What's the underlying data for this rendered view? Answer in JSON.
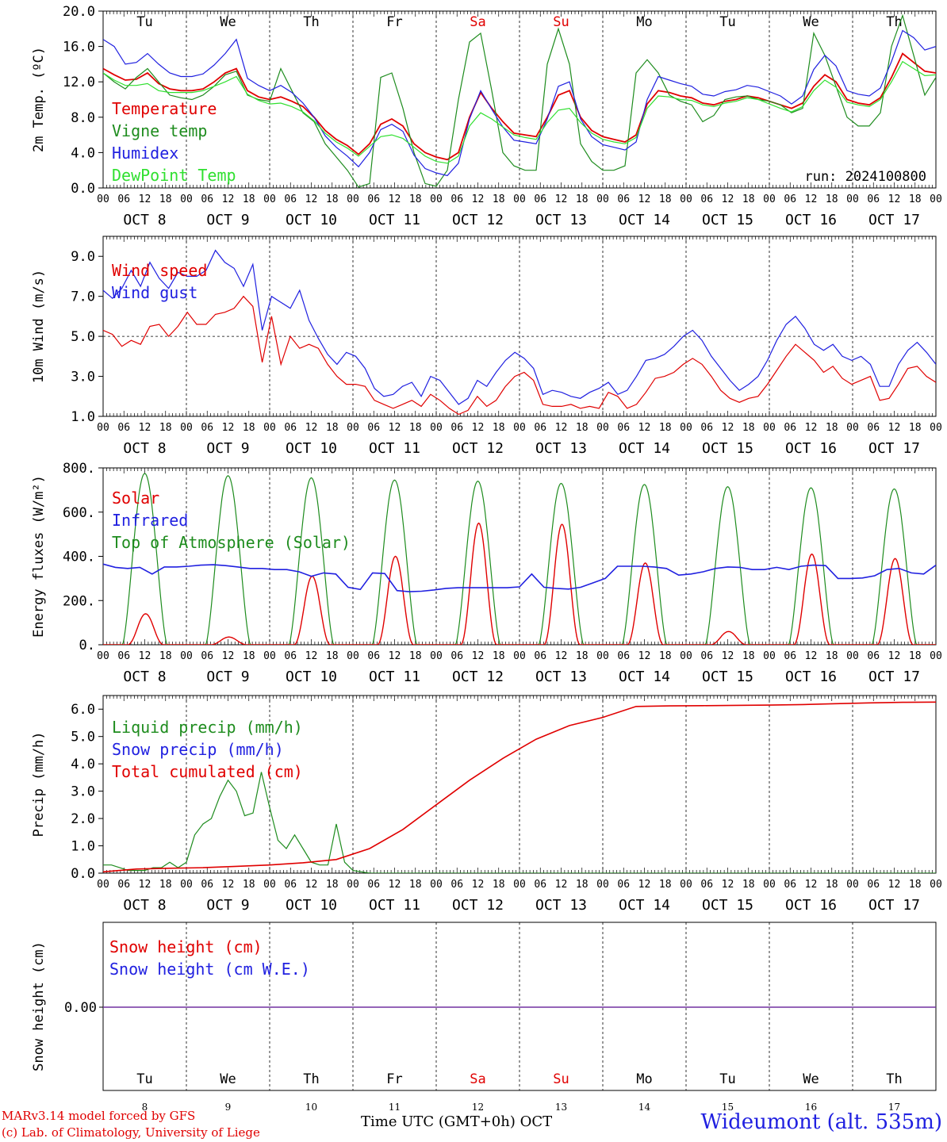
{
  "chart_data": {
    "type": "line",
    "run_label": "run: 2024100800",
    "days": [
      "8",
      "9",
      "10",
      "11",
      "12",
      "13",
      "14",
      "15",
      "16",
      "17"
    ],
    "day_labels": [
      "OCT  8",
      "OCT  9",
      "OCT 10",
      "OCT 11",
      "OCT 12",
      "OCT 13",
      "OCT 14",
      "OCT 15",
      "OCT 16",
      "OCT 17"
    ],
    "weekdays": [
      "Tu",
      "We",
      "Th",
      "Fr",
      "Sa",
      "Su",
      "Mo",
      "Tu",
      "We",
      "Th"
    ],
    "hour_ticks": [
      "00",
      "06",
      "12",
      "18"
    ],
    "end_tick": "00",
    "panels": [
      {
        "id": "temp",
        "ylabel": "2m Temp. (ºC)",
        "ylim": [
          0,
          20
        ],
        "yticks": [
          "0.0",
          "4.0",
          "8.0",
          "12.0",
          "16.0",
          "20.0"
        ],
        "legend": [
          "Temperature",
          "Vigne temp",
          "Humidex",
          "DewPoint Temp"
        ],
        "series": [
          {
            "name": "Temperature",
            "color": "#e00000",
            "values": [
              13.5,
              12.8,
              12.2,
              12.3,
              13.0,
              11.8,
              11.2,
              11.0,
              11.0,
              11.2,
              12.0,
              13.0,
              13.5,
              11.0,
              10.3,
              10.0,
              10.3,
              9.8,
              9.2,
              8.0,
              6.5,
              5.5,
              4.8,
              3.8,
              5.0,
              7.2,
              7.8,
              7.0,
              5.0,
              4.0,
              3.5,
              3.2,
              4.0,
              8.0,
              10.8,
              9.0,
              7.5,
              6.2,
              6.0,
              5.8,
              8.0,
              10.5,
              11.0,
              8.0,
              6.5,
              5.8,
              5.5,
              5.2,
              6.0,
              9.5,
              11.0,
              10.8,
              10.4,
              10.2,
              9.6,
              9.4,
              9.8,
              10.0,
              10.4,
              10.2,
              9.8,
              9.4,
              9.0,
              9.6,
              11.5,
              12.8,
              12.0,
              10.0,
              9.6,
              9.4,
              10.2,
              12.5,
              15.2,
              14.2,
              13.2,
              13.0
            ]
          },
          {
            "name": "Vigne temp",
            "color": "#1e8c1e",
            "values": [
              13.0,
              12.0,
              11.2,
              12.5,
              13.5,
              12.0,
              10.5,
              10.2,
              10.0,
              10.5,
              11.5,
              12.8,
              13.2,
              10.5,
              10.0,
              9.8,
              13.5,
              11.0,
              8.5,
              7.5,
              5.0,
              3.5,
              2.0,
              0.1,
              0.5,
              12.5,
              13.0,
              9.0,
              4.0,
              0.5,
              0.2,
              2.0,
              10.0,
              16.5,
              17.5,
              11.0,
              4.0,
              2.5,
              2.0,
              2.0,
              14.0,
              18.0,
              14.0,
              5.0,
              3.0,
              2.0,
              2.0,
              2.5,
              13.0,
              14.5,
              13.0,
              10.5,
              9.8,
              9.4,
              7.5,
              8.2,
              10.0,
              10.3,
              10.4,
              10.0,
              9.8,
              9.4,
              8.5,
              9.0,
              17.5,
              15.0,
              11.5,
              8.0,
              7.0,
              7.0,
              8.5,
              16.0,
              19.5,
              15.0,
              10.5,
              12.5
            ]
          },
          {
            "name": "Humidex",
            "color": "#2020e0",
            "values": [
              16.8,
              16.0,
              14.0,
              14.2,
              15.2,
              14.0,
              13.0,
              12.6,
              12.6,
              12.9,
              13.9,
              15.2,
              16.8,
              12.4,
              11.6,
              11.0,
              11.6,
              10.8,
              9.6,
              8.0,
              5.9,
              4.6,
              3.6,
              2.4,
              4.0,
              6.6,
              7.2,
              6.4,
              3.7,
              2.2,
              1.7,
              1.4,
              2.8,
              7.8,
              11.0,
              8.9,
              6.9,
              5.4,
              5.2,
              5.0,
              7.8,
              11.5,
              12.0,
              7.8,
              5.8,
              4.9,
              4.6,
              4.3,
              5.2,
              10.0,
              12.6,
              12.2,
              11.8,
              11.5,
              10.6,
              10.4,
              10.9,
              11.1,
              11.6,
              11.4,
              10.9,
              10.4,
              9.5,
              10.4,
              13.4,
              15.0,
              13.8,
              11.0,
              10.6,
              10.4,
              11.3,
              14.3,
              17.8,
              17.0,
              15.6,
              16.0
            ]
          },
          {
            "name": "DewPoint Temp",
            "color": "#30e030",
            "values": [
              13.0,
              12.2,
              11.6,
              11.6,
              11.8,
              11.0,
              10.8,
              10.8,
              10.8,
              11.0,
              11.5,
              12.0,
              12.6,
              10.6,
              9.9,
              9.5,
              9.6,
              9.2,
              8.6,
              7.6,
              6.2,
              5.2,
              4.5,
              3.6,
              4.7,
              5.8,
              6.0,
              5.6,
              4.6,
              3.6,
              3.0,
              2.8,
              3.6,
              7.0,
              8.5,
              7.8,
              6.9,
              6.0,
              5.7,
              5.5,
              7.4,
              8.8,
              9.0,
              7.4,
              6.2,
              5.5,
              5.2,
              5.0,
              5.7,
              9.0,
              10.4,
              10.3,
              10.0,
              9.9,
              9.4,
              9.2,
              9.6,
              9.8,
              10.2,
              10.0,
              9.5,
              9.0,
              8.6,
              9.2,
              11.0,
              12.2,
              11.4,
              9.7,
              9.4,
              9.2,
              10.0,
              12.0,
              14.3,
              13.5,
              12.7,
              12.8
            ]
          }
        ]
      },
      {
        "id": "wind",
        "ylabel": "10m Wind (m/s)",
        "ylim": [
          1,
          10
        ],
        "yticks": [
          "1.0",
          "3.0",
          "5.0",
          "7.0",
          "9.0"
        ],
        "ref_line": 5.0,
        "legend": [
          "Wind speed",
          "Wind gust"
        ],
        "series": [
          {
            "name": "Wind speed",
            "color": "#e00000",
            "values": [
              5.3,
              5.1,
              4.5,
              4.8,
              4.6,
              5.5,
              5.6,
              5.0,
              5.5,
              6.2,
              5.6,
              5.6,
              6.1,
              6.2,
              6.4,
              7.0,
              6.5,
              3.7,
              6.0,
              3.6,
              5.0,
              4.4,
              4.6,
              4.4,
              3.6,
              3.0,
              2.6,
              2.6,
              2.5,
              1.8,
              1.6,
              1.4,
              1.6,
              1.8,
              1.5,
              2.1,
              1.8,
              1.4,
              1.1,
              1.3,
              2.0,
              1.5,
              1.8,
              2.5,
              3.0,
              3.2,
              2.8,
              1.6,
              1.5,
              1.5,
              1.6,
              1.4,
              1.5,
              1.4,
              2.2,
              2.0,
              1.4,
              1.6,
              2.2,
              2.9,
              3.0,
              3.2,
              3.6,
              3.9,
              3.6,
              3.0,
              2.3,
              1.9,
              1.7,
              1.9,
              2.0,
              2.6,
              3.3,
              4.0,
              4.6,
              4.2,
              3.8,
              3.2,
              3.5,
              2.9,
              2.6,
              2.8,
              3.0,
              1.8,
              1.9,
              2.6,
              3.4,
              3.5,
              3.0,
              2.7
            ]
          },
          {
            "name": "Wind gust",
            "color": "#2020e0",
            "values": [
              7.3,
              6.9,
              7.4,
              8.3,
              7.5,
              8.7,
              7.9,
              7.4,
              8.2,
              8.0,
              8.0,
              8.3,
              9.3,
              8.7,
              8.4,
              7.5,
              8.6,
              5.3,
              7.0,
              6.7,
              6.4,
              7.3,
              5.8,
              4.9,
              4.1,
              3.6,
              4.2,
              4.0,
              3.4,
              2.4,
              2.0,
              2.1,
              2.5,
              2.7,
              2.0,
              3.0,
              2.8,
              2.2,
              1.6,
              1.9,
              2.8,
              2.5,
              3.2,
              3.8,
              4.2,
              3.9,
              3.4,
              2.1,
              2.3,
              2.2,
              2.0,
              1.9,
              2.2,
              2.4,
              2.7,
              2.1,
              2.3,
              3.0,
              3.8,
              3.9,
              4.1,
              4.5,
              5.0,
              5.3,
              4.8,
              4.0,
              3.4,
              2.8,
              2.3,
              2.6,
              3.0,
              3.8,
              4.8,
              5.6,
              6.0,
              5.4,
              4.6,
              4.3,
              4.6,
              4.0,
              3.8,
              4.0,
              3.6,
              2.5,
              2.5,
              3.6,
              4.3,
              4.7,
              4.2,
              3.6
            ]
          }
        ]
      },
      {
        "id": "energy",
        "ylabel": "Energy fluxes (W/m²)",
        "ylim": [
          0,
          800
        ],
        "yticks": [
          "0.",
          "200.",
          "400.",
          "600.",
          "800."
        ],
        "legend": [
          "Solar",
          "Infrared",
          "Top of Atmosphere (Solar)"
        ],
        "peaks": {
          "Solar": [
            140,
            35,
            310,
            400,
            550,
            545,
            370,
            60,
            410,
            390
          ],
          "Top of Atmosphere (Solar)": [
            775,
            765,
            755,
            745,
            740,
            730,
            725,
            715,
            710,
            705
          ]
        },
        "series": [
          {
            "name": "Infrared",
            "color": "#2020e0",
            "values": [
              365,
              350,
              345,
              350,
              320,
              352,
              352,
              355,
              360,
              362,
              358,
              352,
              345,
              345,
              340,
              340,
              330,
              310,
              325,
              320,
              260,
              250,
              325,
              322,
              245,
              240,
              242,
              248,
              255,
              258,
              258,
              258,
              258,
              258,
              262,
              320,
              260,
              255,
              252,
              260,
              280,
              300,
              355,
              355,
              355,
              352,
              345,
              315,
              320,
              330,
              345,
              352,
              350,
              340,
              340,
              350,
              340,
              355,
              360,
              358,
              300,
              300,
              302,
              312,
              340,
              345,
              325,
              320,
              360
            ]
          }
        ]
      },
      {
        "id": "precip",
        "ylabel": "Precip (mm/h)",
        "ylim": [
          0,
          6.5
        ],
        "yticks": [
          "0.0",
          "1.0",
          "2.0",
          "3.0",
          "4.0",
          "5.0",
          "6.0"
        ],
        "legend": [
          "Liquid precip (mm/h)",
          "Snow precip (mm/h)",
          "Total cumulated (cm)"
        ],
        "series": [
          {
            "name": "Liquid precip (mm/h)",
            "color": "#1e8c1e",
            "values": [
              0.3,
              0.3,
              0.2,
              0.1,
              0.1,
              0.1,
              0.2,
              0.2,
              0.4,
              0.2,
              0.4,
              1.4,
              1.8,
              2.0,
              2.8,
              3.4,
              3.0,
              2.1,
              2.2,
              3.7,
              2.4,
              1.2,
              0.9,
              1.4,
              0.9,
              0.4,
              0.3,
              0.3,
              1.8,
              0.4,
              0.1,
              0.05,
              0,
              0,
              0,
              0
            ]
          },
          {
            "name": "Total cumulated (cm)",
            "color": "#e00000",
            "values": [
              0.05,
              0.15,
              0.18,
              0.2,
              0.25,
              0.3,
              0.38,
              0.5,
              0.9,
              1.6,
              2.5,
              3.4,
              4.2,
              4.9,
              5.4,
              5.7,
              6.1,
              6.12,
              6.13,
              6.14,
              6.15,
              6.17,
              6.2,
              6.23,
              6.25,
              6.26
            ]
          }
        ]
      },
      {
        "id": "snow",
        "ylabel": "Snow height (cm)",
        "yticks": [
          "0.00"
        ],
        "legend": [
          "Snow height (cm)",
          "Snow height (cm W.E.)"
        ],
        "series": [
          {
            "name": "Snow height (cm)",
            "color": "#e00000",
            "values": [
              0,
              0
            ]
          },
          {
            "name": "Snow height (cm W.E.)",
            "color": "#2020e0",
            "values": [
              0,
              0
            ]
          }
        ]
      }
    ],
    "xlabel": "Time UTC (GMT+0h)",
    "month": "OCT"
  },
  "footer": {
    "model": "MARv3.14 model forced by GFS",
    "credit": "(c) Lab. of Climatology, University of Liege",
    "xlabel": "Time UTC (GMT+0h)",
    "month": "OCT",
    "station": "Wideumont (alt. 535m)"
  },
  "colors": {
    "red": "#e00000",
    "green": "#1e8c1e",
    "blue": "#2020e0",
    "light_green": "#30e030",
    "weekend": "#e00000",
    "snow_line": "#7030a0"
  }
}
